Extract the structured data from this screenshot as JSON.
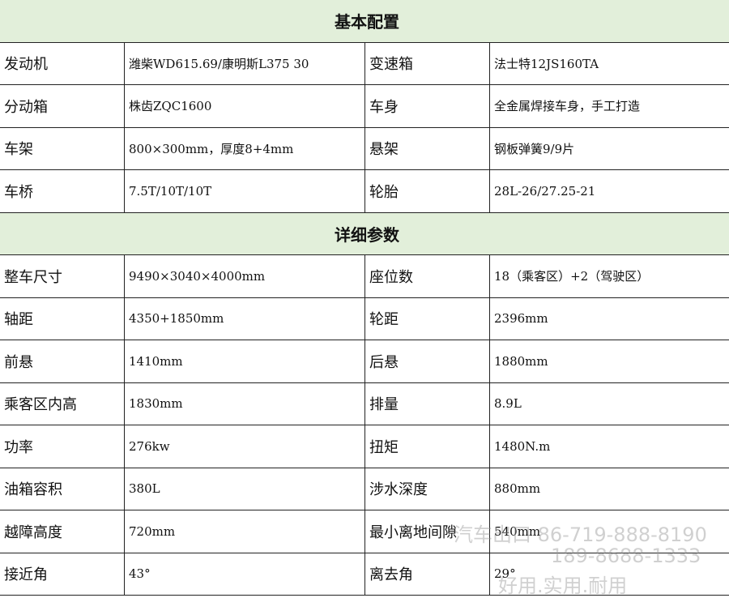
{
  "sections": [
    {
      "title": "基本配置",
      "rows": [
        [
          "发动机",
          "潍柴WD615.69/康明斯L375 30",
          "变速箱",
          "法士特12JS160TA"
        ],
        [
          "分动箱",
          "株齿ZQC1600",
          "车身",
          "全金属焊接车身，手工打造"
        ],
        [
          "车架",
          "800×300mm，厚度8+4mm",
          "悬架",
          "钢板弹簧9/9片"
        ],
        [
          "车桥",
          "7.5T/10T/10T",
          "轮胎",
          "28L-26/27.25-21"
        ]
      ]
    },
    {
      "title": "详细参数",
      "rows": [
        [
          "整车尺寸",
          "9490×3040×4000mm",
          "座位数",
          "18（乘客区）+2（驾驶区）"
        ],
        [
          "轴距",
          "4350+1850mm",
          "轮距",
          "2396mm"
        ],
        [
          "前悬",
          "1410mm",
          "后悬",
          "1880mm"
        ],
        [
          "乘客区内高",
          "1830mm",
          "排量",
          "8.9L"
        ],
        [
          "功率",
          "276kw",
          "扭矩",
          "1480N.m"
        ],
        [
          "油箱容积",
          "380L",
          "涉水深度",
          "880mm"
        ],
        [
          "越障高度",
          "720mm",
          "最小离地间隙",
          "540mm"
        ],
        [
          "接近角",
          "43°",
          "离去角",
          "29°"
        ]
      ]
    }
  ],
  "watermark": {
    "line1": "汽车出口 86-719-888-8190",
    "line2": "189-8688-1333",
    "line3": "好用.实用.耐用"
  }
}
